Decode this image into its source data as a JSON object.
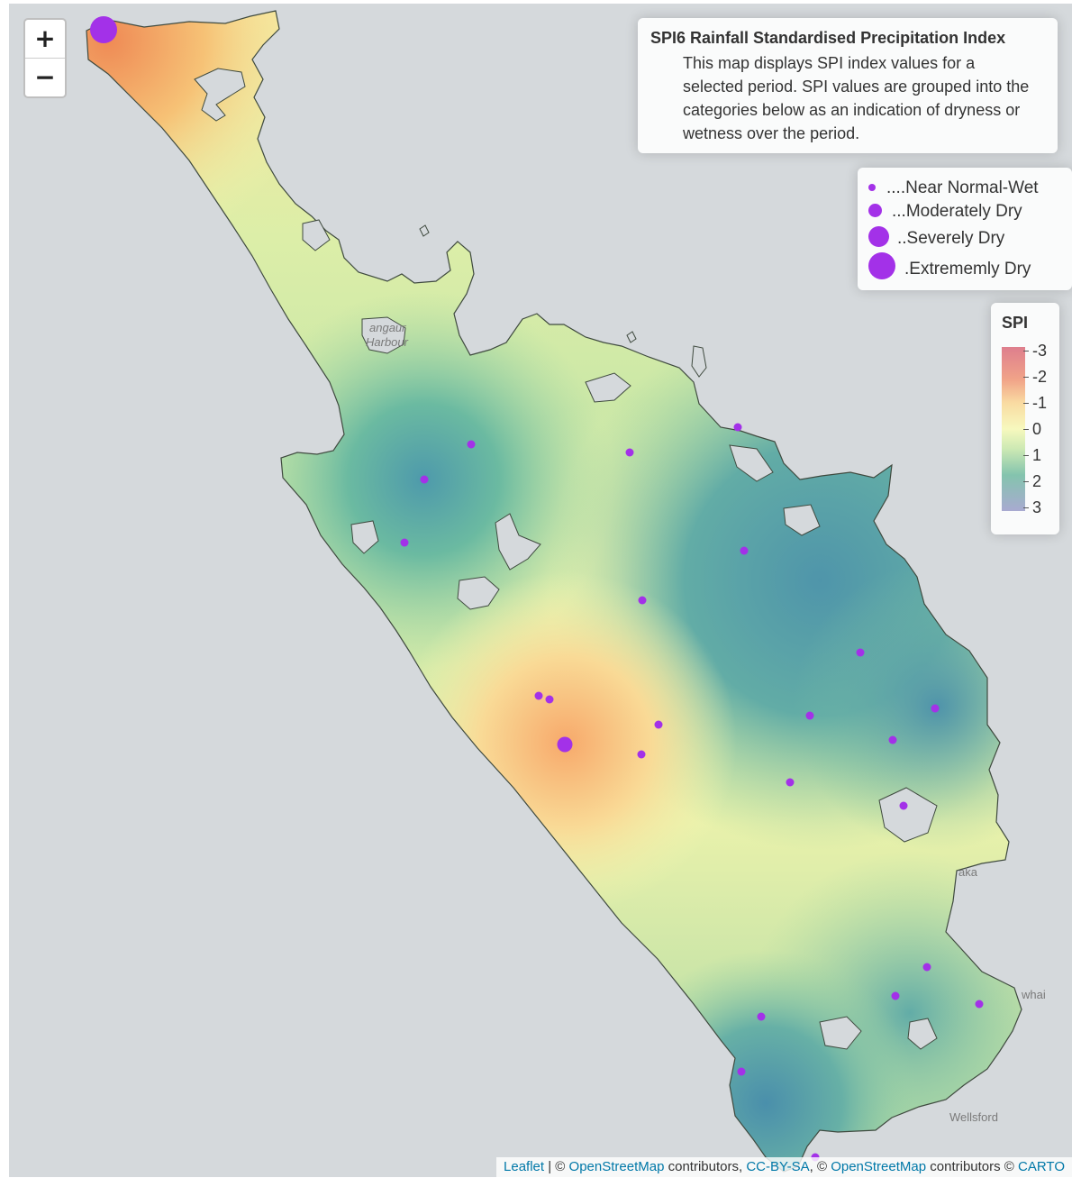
{
  "zoom": {
    "in_label": "+",
    "out_label": "−"
  },
  "info": {
    "title": "SPI6 Rainfall Standardised Precipitation Index",
    "description": "This map displays SPI index values for a selected period. SPI values are grouped into the categories below as an indication of dryness or wetness over the period."
  },
  "size_legend": {
    "items": [
      {
        "label": "....Near Normal-Wet"
      },
      {
        "label": "...Moderately Dry"
      },
      {
        "label": "..Severely Dry"
      },
      {
        "label": ".Extrememly Dry"
      }
    ]
  },
  "spi_legend": {
    "title": "SPI",
    "ticks": [
      "-3",
      "-2",
      "-1",
      "0",
      "1",
      "2",
      "3"
    ],
    "colors": [
      "#d9687a",
      "#ef9474",
      "#f9d592",
      "#f6f8b3",
      "#c5e6a7",
      "#6fbaa0",
      "#9a9cc9"
    ]
  },
  "place_labels": {
    "harbour_1": "angaur",
    "harbour_2": "Harbour",
    "kaka": "aka",
    "whai": "whai",
    "wellsford": "Wellsford"
  },
  "stations": [
    {
      "category": "Extrememly Dry"
    },
    {
      "category": "Near Normal-Wet"
    },
    {
      "category": "Near Normal-Wet"
    },
    {
      "category": "Near Normal-Wet"
    },
    {
      "category": "Near Normal-Wet"
    },
    {
      "category": "Near Normal-Wet"
    },
    {
      "category": "Near Normal-Wet"
    },
    {
      "category": "Near Normal-Wet"
    },
    {
      "category": "Near Normal-Wet"
    },
    {
      "category": "Near Normal-Wet"
    },
    {
      "category": "Near Normal-Wet"
    },
    {
      "category": "Moderately Dry"
    },
    {
      "category": "Near Normal-Wet"
    },
    {
      "category": "Near Normal-Wet"
    },
    {
      "category": "Near Normal-Wet"
    },
    {
      "category": "Near Normal-Wet"
    },
    {
      "category": "Near Normal-Wet"
    },
    {
      "category": "Near Normal-Wet"
    },
    {
      "category": "Near Normal-Wet"
    },
    {
      "category": "Near Normal-Wet"
    },
    {
      "category": "Near Normal-Wet"
    },
    {
      "category": "Near Normal-Wet"
    },
    {
      "category": "Near Normal-Wet"
    },
    {
      "category": "Near Normal-Wet"
    },
    {
      "category": "Near Normal-Wet"
    }
  ],
  "attribution": {
    "leaflet": "Leaflet",
    "sep1": " | © ",
    "osm1": "OpenStreetMap",
    "contrib1": " contributors, ",
    "ccbysa": "CC-BY-SA",
    "sep2": ", © ",
    "osm2": "OpenStreetMap",
    "contrib2": " contributors © ",
    "carto": "CARTO"
  }
}
